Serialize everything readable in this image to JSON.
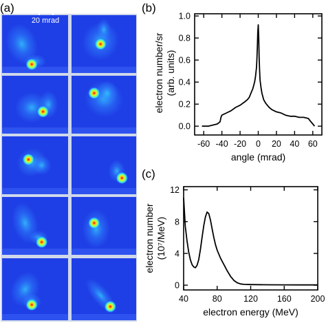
{
  "panel_labels": {
    "a": "(a)",
    "b": "(b)",
    "c": "(c)"
  },
  "panel_a": {
    "scale_bar_label": "20 mrad",
    "colors": {
      "background": "#1f3fe6",
      "border": "#cfd8ea",
      "frame_edge": "#3b62f5"
    },
    "colormap": [
      "#2646ee",
      "#2f8cff",
      "#35d6ff",
      "#7dff7a",
      "#f3f21a",
      "#ff7a12",
      "#e01212"
    ],
    "image_count": 10,
    "layout": "5 rows x 2 columns of electron beam profile images"
  },
  "chart_data": [
    {
      "id": "b",
      "type": "line",
      "title": "",
      "xlabel": "angle (mrad)",
      "ylabel_lines": [
        "electron number/sr",
        "(arb. units)"
      ],
      "xlim": [
        -70,
        70
      ],
      "ylim": [
        -0.08,
        1.02
      ],
      "xticks": [
        -60,
        -40,
        -20,
        0,
        20,
        40,
        60
      ],
      "xtick_labels": [
        "-60",
        "-40",
        "-20",
        "0",
        "20",
        "40",
        "60"
      ],
      "yticks": [
        0.0,
        0.2,
        0.4,
        0.6,
        0.8,
        1.0
      ],
      "ytick_labels": [
        "0.0",
        "0.2",
        "0.4",
        "0.6",
        "0.8",
        "1.0"
      ],
      "grid": false,
      "series": [
        {
          "x": [
            -62,
            -55,
            -50,
            -45,
            -42,
            -41,
            -40,
            -35,
            -30,
            -25,
            -20,
            -15,
            -12,
            -10,
            -8,
            -6,
            -5,
            -4,
            -3,
            -2,
            -1.5,
            -1,
            -0.5,
            0,
            0.5,
            1,
            1.5,
            2,
            3,
            4,
            5,
            6,
            8,
            10,
            12,
            15,
            20,
            25,
            30,
            35,
            40,
            45,
            50,
            55,
            58,
            60,
            62
          ],
          "y": [
            0.0,
            0.0,
            0.01,
            0.02,
            0.04,
            0.08,
            0.1,
            0.12,
            0.14,
            0.17,
            0.19,
            0.22,
            0.24,
            0.26,
            0.3,
            0.34,
            0.37,
            0.4,
            0.45,
            0.53,
            0.6,
            0.72,
            0.85,
            0.92,
            0.8,
            0.62,
            0.5,
            0.42,
            0.35,
            0.3,
            0.27,
            0.24,
            0.21,
            0.19,
            0.17,
            0.15,
            0.13,
            0.12,
            0.1,
            0.09,
            0.09,
            0.08,
            0.08,
            0.07,
            0.04,
            0.02,
            0.0
          ]
        }
      ]
    },
    {
      "id": "c",
      "type": "line",
      "title": "",
      "xlabel": "electron energy (MeV)",
      "ylabel_lines": [
        "electron number",
        "(10⁷/MeV)"
      ],
      "xlim": [
        40,
        200
      ],
      "ylim": [
        -0.6,
        12.4
      ],
      "xticks": [
        40,
        80,
        120,
        160,
        200
      ],
      "xtick_labels": [
        "40",
        "80",
        "120",
        "160",
        "200"
      ],
      "yticks": [
        0,
        4,
        8,
        12
      ],
      "ytick_labels": [
        "0",
        "4",
        "8",
        "12"
      ],
      "grid": false,
      "series": [
        {
          "x": [
            40,
            41,
            42,
            44,
            46,
            48,
            50,
            52,
            54,
            56,
            58,
            60,
            62,
            64,
            66,
            68,
            70,
            72,
            74,
            76,
            78,
            80,
            84,
            88,
            92,
            96,
            100,
            104,
            108,
            112,
            120,
            140,
            160,
            180,
            200
          ],
          "y": [
            11.0,
            9.2,
            7.4,
            5.6,
            4.2,
            3.2,
            2.6,
            2.3,
            2.2,
            2.5,
            3.2,
            4.5,
            6.0,
            7.5,
            8.6,
            9.2,
            9.0,
            8.2,
            7.1,
            6.0,
            5.1,
            4.4,
            3.4,
            2.6,
            1.8,
            1.1,
            0.6,
            0.3,
            0.15,
            0.1,
            0.08,
            0.05,
            0.04,
            0.03,
            0.03
          ]
        }
      ]
    }
  ]
}
